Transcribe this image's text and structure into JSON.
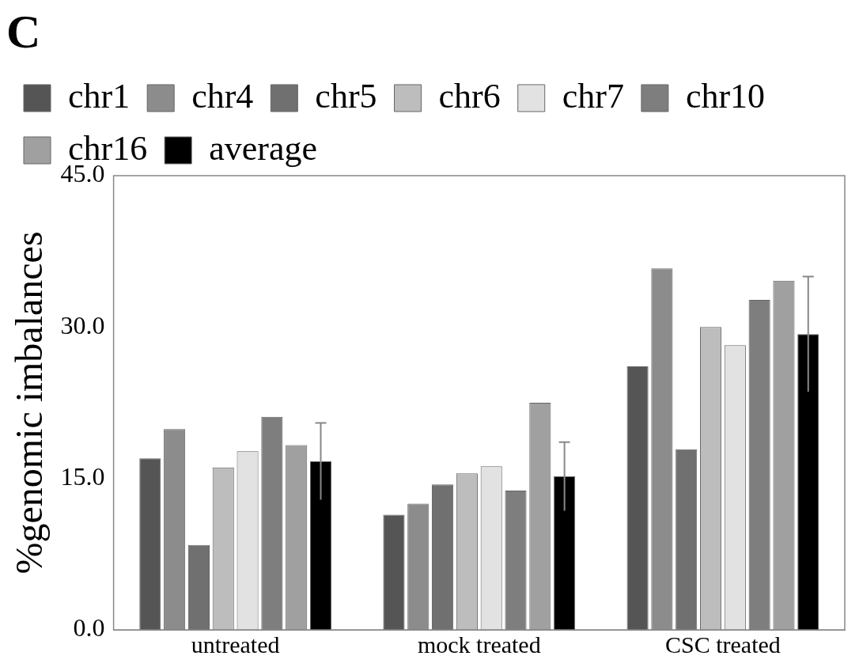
{
  "chart_data": {
    "type": "bar",
    "title": "C",
    "ylabel": "%genomic imbalances",
    "categories": [
      "untreated",
      "mock treated",
      "CSC treated"
    ],
    "series": [
      {
        "name": "chr1",
        "color": "#555555",
        "values": [
          17.0,
          11.4,
          26.1
        ]
      },
      {
        "name": "chr4",
        "color": "#8c8c8c",
        "values": [
          19.9,
          12.5,
          35.8
        ]
      },
      {
        "name": "chr5",
        "color": "#707070",
        "values": [
          8.4,
          14.4,
          17.9
        ]
      },
      {
        "name": "chr6",
        "color": "#bdbdbd",
        "values": [
          16.1,
          15.5,
          30.0
        ]
      },
      {
        "name": "chr7",
        "color": "#e2e2e2",
        "values": [
          17.7,
          16.2,
          28.2
        ]
      },
      {
        "name": "chr10",
        "color": "#7e7e7e",
        "values": [
          21.1,
          13.8,
          32.7
        ]
      },
      {
        "name": "chr16",
        "color": "#a0a0a0",
        "values": [
          18.3,
          22.5,
          34.6
        ]
      },
      {
        "name": "average",
        "color": "#000000",
        "values": [
          16.7,
          15.2,
          29.3
        ],
        "errors": [
          3.8,
          3.4,
          5.7
        ]
      }
    ],
    "ylim": [
      0,
      45
    ],
    "yticks": [
      {
        "value": 0,
        "label": "0.0"
      },
      {
        "value": 15,
        "label": "15.0"
      },
      {
        "value": 30,
        "label": "30.0"
      },
      {
        "value": 45,
        "label": "45.0"
      }
    ],
    "grid": false,
    "legend": "top"
  }
}
